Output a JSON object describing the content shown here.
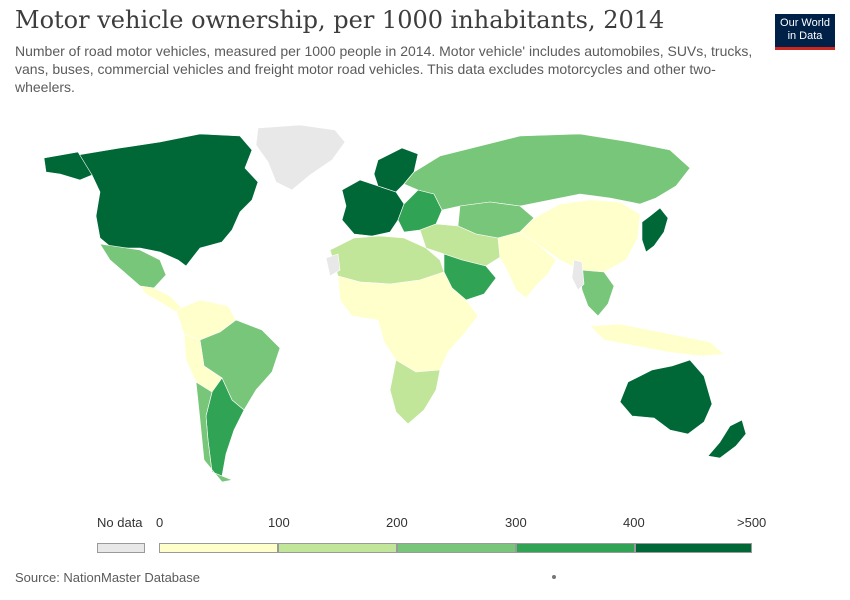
{
  "title": "Motor vehicle ownership, per 1000 inhabitants, 2014",
  "subtitle": "Number of road motor vehicles, measured per 1000 people in 2014. Motor vehicle' includes automobiles, SUVs, trucks, vans, buses, commercial vehicles and freight motor road vehicles. This data excludes motorcycles and other two-wheelers.",
  "logo": {
    "line1": "Our World",
    "line2": "in Data"
  },
  "source": "Source: NationMaster Database",
  "legend": {
    "no_data_label": "No data",
    "no_data_color": "#e8e8e8",
    "ticks": [
      "0",
      "100",
      "200",
      "300",
      "400",
      ">500"
    ],
    "bins": [
      {
        "range": "0-100",
        "color": "#ffffcc"
      },
      {
        "range": "100-200",
        "color": "#c2e699"
      },
      {
        "range": "200-300",
        "color": "#78c679"
      },
      {
        "range": "300-400",
        "color": "#31a354"
      },
      {
        "range": "400-500",
        "color": "#006837"
      }
    ]
  },
  "map": {
    "regions": [
      {
        "name": "Greenland",
        "bin": "nodata"
      },
      {
        "name": "Canada & USA",
        "bin": 4
      },
      {
        "name": "Alaska",
        "bin": 4
      },
      {
        "name": "Mexico",
        "bin": 2
      },
      {
        "name": "Central America",
        "bin": 0
      },
      {
        "name": "Colombia & Venezuela",
        "bin": 0
      },
      {
        "name": "Brazil",
        "bin": 2
      },
      {
        "name": "Peru & Bolivia",
        "bin": 0
      },
      {
        "name": "Argentina",
        "bin": 3
      },
      {
        "name": "Chile",
        "bin": 2
      },
      {
        "name": "Western Europe",
        "bin": 4
      },
      {
        "name": "Scandinavia",
        "bin": 4
      },
      {
        "name": "Eastern Europe",
        "bin": 3
      },
      {
        "name": "Russia",
        "bin": 2
      },
      {
        "name": "Kazakhstan & Central Asia",
        "bin": 2
      },
      {
        "name": "Turkey & Middle East",
        "bin": 1
      },
      {
        "name": "Saudi Arabia",
        "bin": 3
      },
      {
        "name": "North Africa",
        "bin": 1
      },
      {
        "name": "Sub-Saharan Africa",
        "bin": 0
      },
      {
        "name": "Southern Africa",
        "bin": 1
      },
      {
        "name": "China",
        "bin": 0
      },
      {
        "name": "India",
        "bin": 0
      },
      {
        "name": "Japan & Korea",
        "bin": 4
      },
      {
        "name": "Southeast Asia",
        "bin": 2
      },
      {
        "name": "Indonesia",
        "bin": 0
      },
      {
        "name": "Australia",
        "bin": 4
      },
      {
        "name": "New Zealand",
        "bin": 4
      },
      {
        "name": "Western Sahara",
        "bin": "nodata"
      },
      {
        "name": "Myanmar",
        "bin": "nodata"
      }
    ]
  }
}
